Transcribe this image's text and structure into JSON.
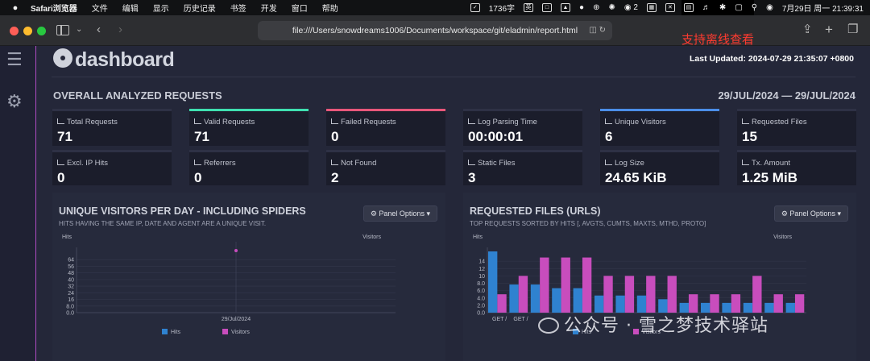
{
  "menubar": {
    "app_name": "Safari浏览器",
    "items": [
      "文件",
      "编辑",
      "显示",
      "历史记录",
      "书签",
      "开发",
      "窗口",
      "帮助"
    ],
    "word_count": "1736字",
    "input_method": "英",
    "badge_count": "2",
    "datetime": "7月29日 周一  21:39:31"
  },
  "browser": {
    "url": "file:///Users/snowdreams1006/Documents/workspace/git/eladmin/report.html",
    "annotation": "支持离线查看"
  },
  "dashboard": {
    "brand": "dashboard",
    "last_updated": "Last Updated: 2024-07-29 21:35:07 +0800",
    "section_title": "OVERALL ANALYZED REQUESTS",
    "date_range": "29/JUL/2024 — 29/JUL/2024",
    "cards": [
      {
        "label": "Total Requests",
        "value": "71",
        "accent": ""
      },
      {
        "label": "Valid Requests",
        "value": "71",
        "accent": "#3fe0b0"
      },
      {
        "label": "Failed Requests",
        "value": "0",
        "accent": "#e8577a"
      },
      {
        "label": "Log Parsing Time",
        "value": "00:00:01",
        "accent": ""
      },
      {
        "label": "Unique Visitors",
        "value": "6",
        "accent": "#4b8ee8"
      },
      {
        "label": "Requested Files",
        "value": "15",
        "accent": ""
      },
      {
        "label": "Excl. IP Hits",
        "value": "0",
        "accent": ""
      },
      {
        "label": "Referrers",
        "value": "0",
        "accent": ""
      },
      {
        "label": "Not Found",
        "value": "2",
        "accent": ""
      },
      {
        "label": "Static Files",
        "value": "3",
        "accent": ""
      },
      {
        "label": "Log Size",
        "value": "24.65 KiB",
        "accent": ""
      },
      {
        "label": "Tx. Amount",
        "value": "1.25 MiB",
        "accent": ""
      }
    ],
    "panel_options_label": "Panel Options",
    "panels": [
      {
        "title": "UNIQUE VISITORS PER DAY - INCLUDING SPIDERS",
        "subtitle": "HITS HAVING THE SAME IP, DATE AND AGENT ARE A UNIQUE VISIT."
      },
      {
        "title": "REQUESTED FILES (URLS)",
        "subtitle": "TOP REQUESTS SORTED BY HITS [, AVGTS, CUMTS, MAXTS, MTHD, PROTO]"
      }
    ]
  },
  "watermark": "公众号 · 雪之梦技术驿站",
  "colors": {
    "hits": "#2f82d0",
    "visitors": "#c84dbd"
  },
  "chart_data": [
    {
      "type": "line",
      "title": "UNIQUE VISITORS PER DAY - INCLUDING SPIDERS",
      "left_axis_label": "Hits",
      "right_axis_label": "Visitors",
      "categories": [
        "29/Jul/2024"
      ],
      "yticks": [
        "0.0",
        "8.0",
        "16",
        "24",
        "32",
        "40",
        "48",
        "56",
        "64"
      ],
      "ylim": [
        0,
        71
      ],
      "series": [
        {
          "name": "Hits",
          "values": [
            71
          ]
        },
        {
          "name": "Visitors",
          "values": [
            6
          ]
        }
      ],
      "legend": "bottom"
    },
    {
      "type": "bar",
      "title": "REQUESTED FILES (URLS)",
      "left_axis_label": "Hits",
      "right_axis_label": "Visitors",
      "categories": [
        "GET /",
        "GET /",
        "GET /",
        "GET /",
        "GET /",
        "GET /",
        "GET /",
        "GET /",
        "GET /",
        "GET /",
        "GET /",
        "GET /",
        "GET /",
        "GET /",
        "GET /"
      ],
      "tick_labels": [
        "GET /",
        "GET /"
      ],
      "yticks": [
        "0.0",
        "2.0",
        "4.0",
        "6.0",
        "8.0",
        "10",
        "12",
        "14"
      ],
      "ylim": [
        0,
        16
      ],
      "series": [
        {
          "name": "Hits",
          "values": [
            16,
            7,
            7,
            6,
            6,
            4,
            4,
            4,
            3,
            2,
            2,
            2,
            2,
            2,
            2
          ]
        },
        {
          "name": "Visitors",
          "values": [
            5,
            10,
            15,
            15,
            15,
            10,
            10,
            10,
            10,
            5,
            5,
            5,
            10,
            5,
            5
          ]
        }
      ],
      "legend": "bottom"
    }
  ]
}
